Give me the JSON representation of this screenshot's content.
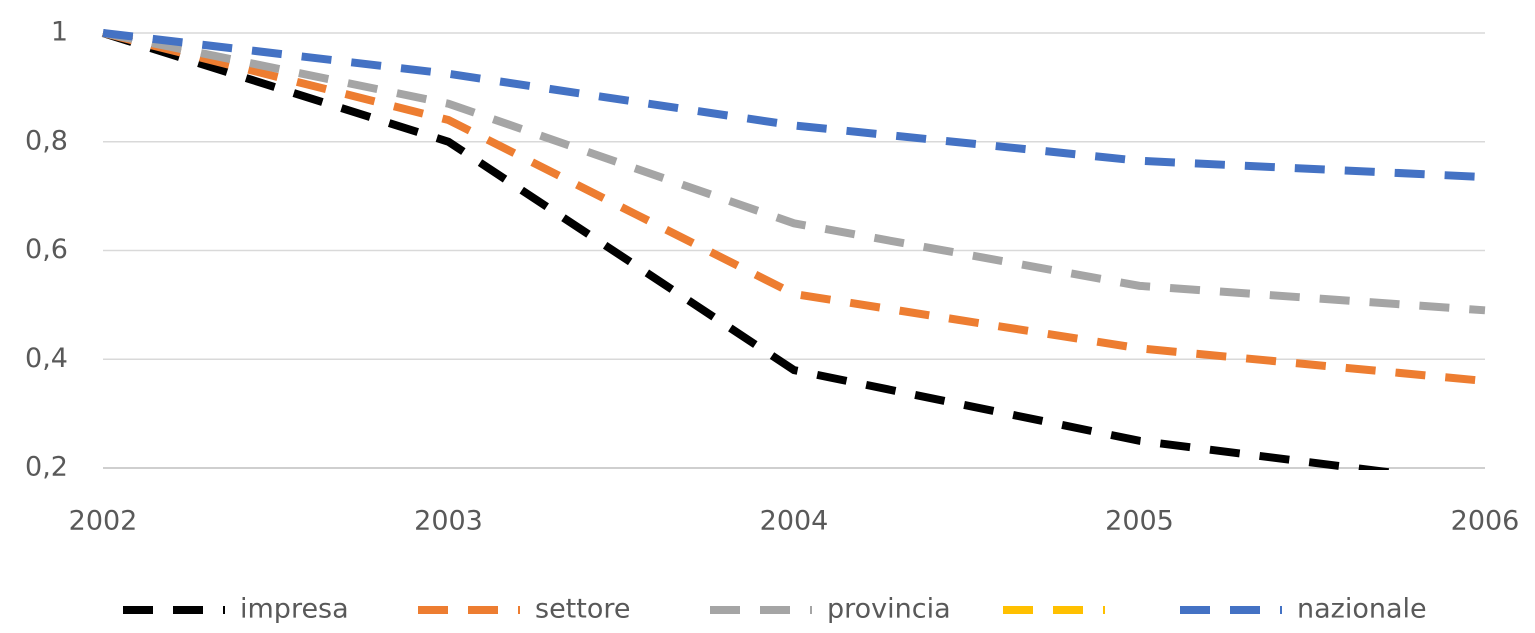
{
  "chart_data": {
    "type": "line",
    "x": [
      2002,
      2003,
      2004,
      2005,
      2006
    ],
    "xlim": [
      2002,
      2006
    ],
    "xticks": [
      2002,
      2003,
      2004,
      2005,
      2006
    ],
    "ylim": [
      0.2,
      1
    ],
    "yticks": [
      {
        "value": 0.2,
        "label": "0,2"
      },
      {
        "value": 0.4,
        "label": "0,4"
      },
      {
        "value": 0.6,
        "label": "0,6"
      },
      {
        "value": 0.8,
        "label": "0,8"
      },
      1
    ],
    "grid": true,
    "legend": "bottom",
    "line_style": "dashed",
    "series": [
      {
        "name": "impresa",
        "color": "#000000",
        "values": [
          1,
          0.8,
          0.38,
          0.25,
          0.17
        ]
      },
      {
        "name": "settore",
        "color": "#ed7d31",
        "values": [
          1,
          0.84,
          0.52,
          0.42,
          0.36
        ]
      },
      {
        "name": "provincia",
        "color": "#a5a5a5",
        "values": [
          1,
          0.87,
          0.65,
          0.535,
          0.49
        ]
      },
      {
        "name": null,
        "color": "#ffc000",
        "values": [
          null,
          null,
          null,
          null,
          null
        ]
      },
      {
        "name": "nazionale",
        "color": "#4472c4",
        "values": [
          1,
          0.925,
          0.83,
          0.765,
          0.735
        ]
      }
    ]
  }
}
